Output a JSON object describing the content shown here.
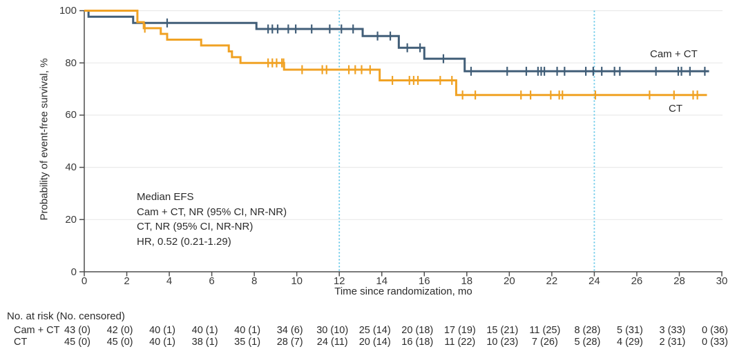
{
  "chart_data": {
    "type": "line",
    "subtype": "kaplan-meier-step",
    "title": "",
    "xlabel": "Time since randomization, mo",
    "ylabel": "Probability of event-free survival, %",
    "xlim": [
      0,
      30
    ],
    "xtick_step": 2,
    "ylim": [
      0,
      100
    ],
    "ytick_step": 20,
    "grid": "horizontal",
    "reference_lines_x": [
      12,
      24
    ],
    "reference_line_color": "#5BC4E7",
    "annotation": [
      "Median EFS",
      "Cam + CT, NR (95% CI, NR-NR)",
      "CT, NR (95% CI, NR-NR)",
      "HR, 0.52 (0.21-1.29)"
    ],
    "series": [
      {
        "name": "Cam + CT",
        "color": "#415E78",
        "steps": [
          [
            0,
            100
          ],
          [
            0.2,
            97.7
          ],
          [
            2.3,
            95.3
          ],
          [
            8.1,
            93.0
          ],
          [
            13.1,
            90.3
          ],
          [
            14.8,
            85.8
          ],
          [
            16.0,
            81.6
          ],
          [
            17.9,
            76.8
          ]
        ],
        "end_x": 29.4,
        "censor_x": [
          3.9,
          8.65,
          8.85,
          9.1,
          9.6,
          9.95,
          10.7,
          11.55,
          12.1,
          12.65,
          13.8,
          14.4,
          15.2,
          15.8,
          16.9,
          18.2,
          19.9,
          20.8,
          21.35,
          21.5,
          21.65,
          22.25,
          22.6,
          23.6,
          23.95,
          24.35,
          24.95,
          25.2,
          26.9,
          27.95,
          28.1,
          28.5,
          29.2
        ]
      },
      {
        "name": "CT",
        "color": "#F0A224",
        "steps": [
          [
            0,
            100
          ],
          [
            2.5,
            95.6
          ],
          [
            2.8,
            93.3
          ],
          [
            3.6,
            91.1
          ],
          [
            3.9,
            88.9
          ],
          [
            5.5,
            86.7
          ],
          [
            6.8,
            84.4
          ],
          [
            6.95,
            82.2
          ],
          [
            7.35,
            80.0
          ],
          [
            9.4,
            77.4
          ],
          [
            13.9,
            73.3
          ],
          [
            17.5,
            67.7
          ]
        ],
        "end_x": 29.3,
        "censor_x": [
          2.85,
          8.65,
          8.85,
          9.05,
          9.3,
          9.38,
          10.25,
          11.2,
          11.4,
          12.45,
          12.75,
          13.05,
          13.45,
          14.5,
          15.3,
          15.5,
          15.7,
          16.75,
          17.3,
          17.8,
          18.4,
          20.55,
          21.0,
          21.95,
          22.35,
          22.5,
          24.05,
          26.6,
          27.75,
          28.65,
          28.85
        ]
      }
    ]
  },
  "risk_table": {
    "header": "No. at risk (No. censored)",
    "months": [
      0,
      2,
      4,
      6,
      8,
      10,
      12,
      14,
      16,
      18,
      20,
      22,
      24,
      26,
      28,
      30
    ],
    "rows": [
      {
        "label": "Cam + CT",
        "values": [
          "43 (0)",
          "42 (0)",
          "40 (1)",
          "40 (1)",
          "40 (1)",
          "34 (6)",
          "30 (10)",
          "25 (14)",
          "20 (18)",
          "17 (19)",
          "15 (21)",
          "11 (25)",
          "8 (28)",
          "5 (31)",
          "3 (33)",
          "0 (36)"
        ]
      },
      {
        "label": "CT",
        "values": [
          "45 (0)",
          "45 (0)",
          "40 (1)",
          "38 (1)",
          "35 (1)",
          "28 (7)",
          "24 (11)",
          "20 (14)",
          "16 (18)",
          "11 (22)",
          "10 (23)",
          "7 (26)",
          "5 (28)",
          "4 (29)",
          "2 (31)",
          "0 (33)"
        ]
      }
    ]
  }
}
